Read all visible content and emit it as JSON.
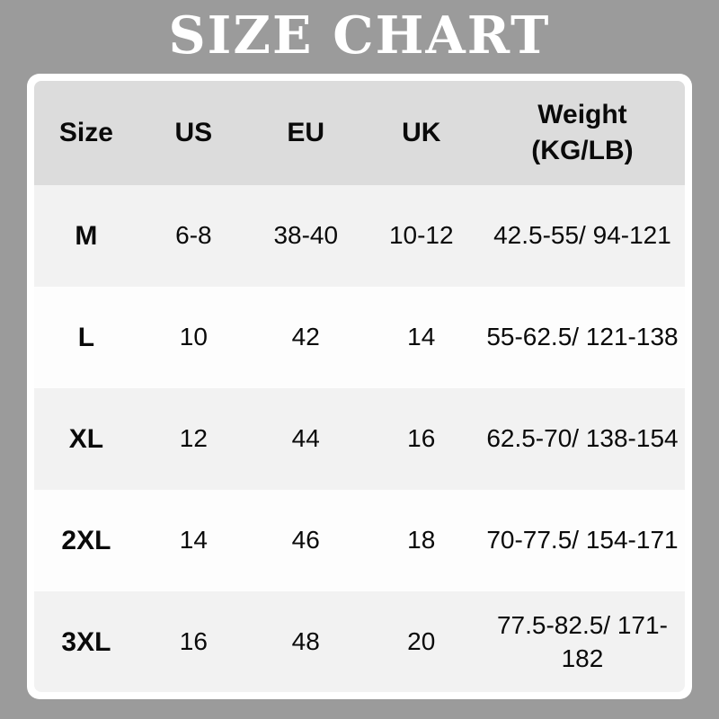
{
  "page": {
    "title": "SIZE CHART",
    "background_color": "#9b9b9b",
    "title_color": "#ffffff"
  },
  "table": {
    "colors": {
      "frame": "#ffffff",
      "header_bg": "#dcdcdc",
      "row_odd_bg": "#f2f2f2",
      "row_even_bg": "#fdfdfd",
      "text": "#0a0a0a"
    },
    "columns": [
      "Size",
      "US",
      "EU",
      "UK",
      "Weight\n(KG/LB)"
    ],
    "rows": [
      {
        "size": "M",
        "us": "6-8",
        "eu": "38-40",
        "uk": "10-12",
        "weight": "42.5-55/ 94-121"
      },
      {
        "size": "L",
        "us": "10",
        "eu": "42",
        "uk": "14",
        "weight": "55-62.5/ 121-138"
      },
      {
        "size": "XL",
        "us": "12",
        "eu": "44",
        "uk": "16",
        "weight": "62.5-70/ 138-154"
      },
      {
        "size": "2XL",
        "us": "14",
        "eu": "46",
        "uk": "18",
        "weight": "70-77.5/ 154-171"
      },
      {
        "size": "3XL",
        "us": "16",
        "eu": "48",
        "uk": "20",
        "weight": "77.5-82.5/ 171-182"
      }
    ]
  },
  "chart_data": {
    "type": "table",
    "title": "SIZE CHART",
    "columns": [
      "Size",
      "US",
      "EU",
      "UK",
      "Weight (KG/LB)"
    ],
    "rows": [
      [
        "M",
        "6-8",
        "38-40",
        "10-12",
        "42.5-55/ 94-121"
      ],
      [
        "L",
        "10",
        "42",
        "14",
        "55-62.5/ 121-138"
      ],
      [
        "XL",
        "12",
        "44",
        "16",
        "62.5-70/ 138-154"
      ],
      [
        "2XL",
        "14",
        "46",
        "18",
        "70-77.5/ 154-171"
      ],
      [
        "3XL",
        "16",
        "48",
        "20",
        "77.5-82.5/ 171-182"
      ]
    ]
  }
}
